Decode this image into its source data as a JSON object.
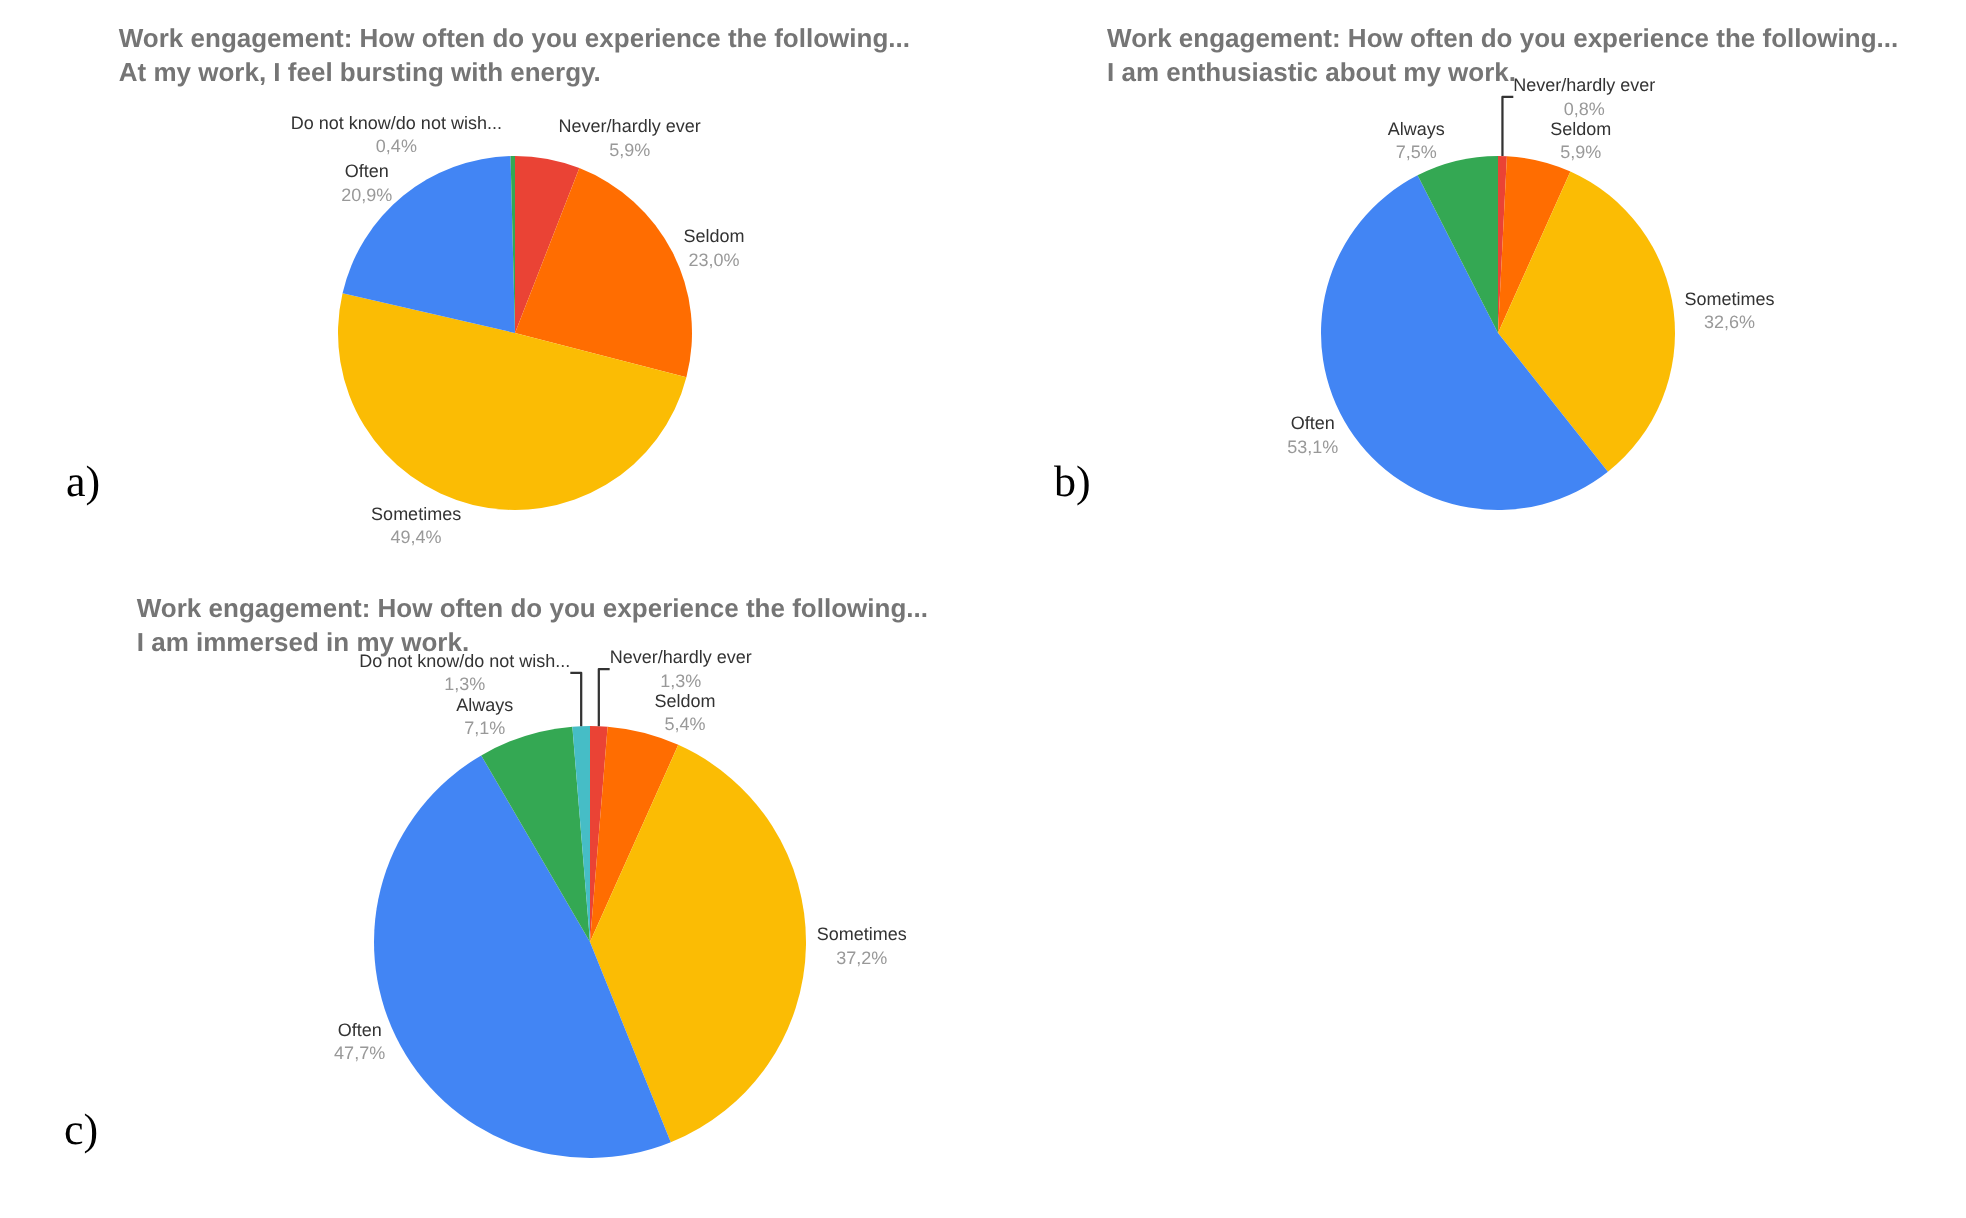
{
  "chart_data": [
    {
      "type": "pie",
      "title": "Work engagement: How often do you experience the following... At my work, I feel bursting with energy.",
      "categories": [
        "Never/hardly ever",
        "Seldom",
        "Sometimes",
        "Often",
        "Do not know/do not wish..."
      ],
      "values": [
        5.9,
        23.0,
        49.4,
        20.9,
        0.4
      ],
      "value_labels": [
        "5,9%",
        "23,0%",
        "49,4%",
        "20,9%",
        "0,4%"
      ],
      "colors": [
        "#ea4335",
        "#ff6d01",
        "#fbbc04",
        "#4285f4",
        "#34a853"
      ],
      "annotations": [
        "a)"
      ],
      "legend": false
    },
    {
      "type": "pie",
      "title": "Work engagement: How often do you experience the following... I am enthusiastic about my work.",
      "categories": [
        "Never/hardly ever",
        "Seldom",
        "Sometimes",
        "Often",
        "Always"
      ],
      "values": [
        0.8,
        5.9,
        32.6,
        53.1,
        7.5
      ],
      "value_labels": [
        "0,8%",
        "5,9%",
        "32,6%",
        "53,1%",
        "7,5%"
      ],
      "colors": [
        "#ea4335",
        "#ff6d01",
        "#fbbc04",
        "#4285f4",
        "#34a853"
      ],
      "annotations": [
        "b)"
      ],
      "legend": false
    },
    {
      "type": "pie",
      "title": "Work engagement: How often do you experience the following... I am immersed in my work.",
      "categories": [
        "Never/hardly ever",
        "Seldom",
        "Sometimes",
        "Often",
        "Always",
        "Do not know/do not wish..."
      ],
      "values": [
        1.3,
        5.4,
        37.2,
        47.7,
        7.1,
        1.3
      ],
      "value_labels": [
        "1,3%",
        "5,4%",
        "37,2%",
        "47,7%",
        "7,1%",
        "1,3%"
      ],
      "colors": [
        "#ea4335",
        "#ff6d01",
        "#fbbc04",
        "#4285f4",
        "#34a853",
        "#46bdc6"
      ],
      "annotations": [
        "c)"
      ],
      "legend": false
    }
  ]
}
